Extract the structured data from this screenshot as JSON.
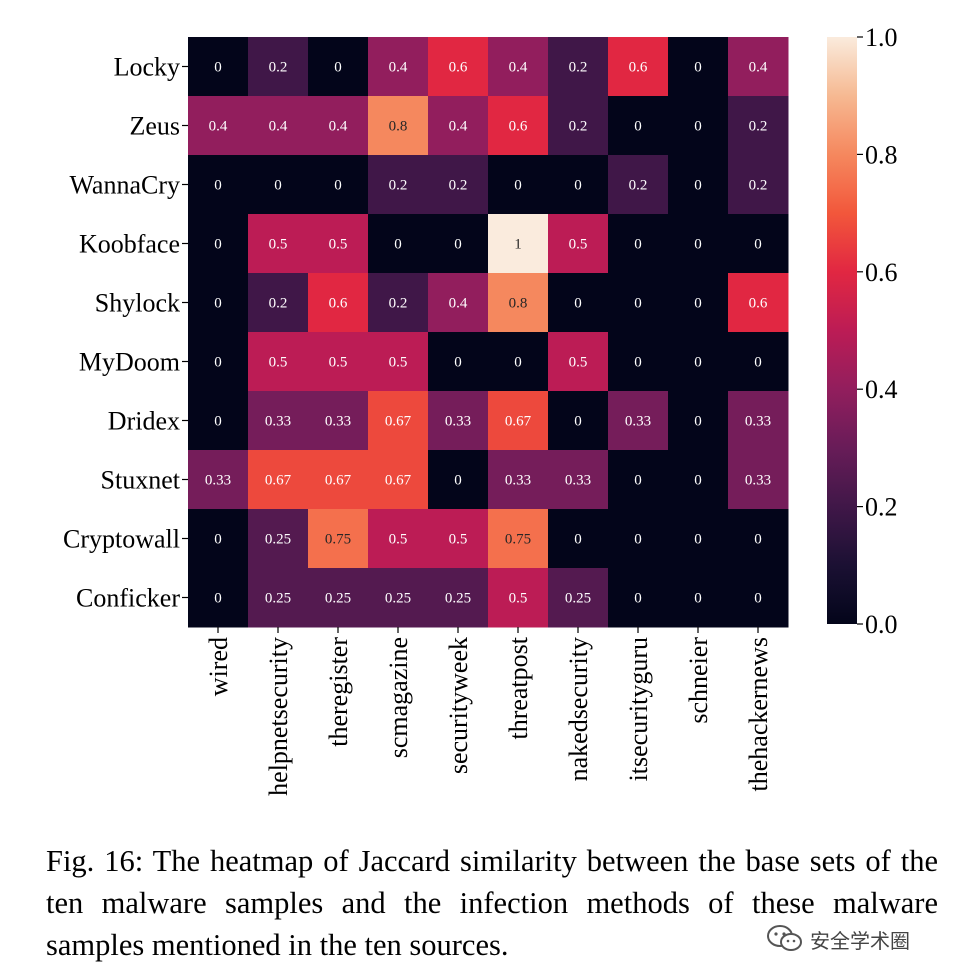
{
  "caption": "Fig. 16: The heatmap of Jaccard similarity between the base sets of the ten malware samples and the infection methods of these malware samples mentioned in the ten sources.",
  "watermark": {
    "text": "安全学术圈",
    "icon": "wechat-icon"
  },
  "chart_data": {
    "type": "heatmap",
    "rows": [
      "Locky",
      "Zeus",
      "WannaCry",
      "Koobface",
      "Shylock",
      "MyDoom",
      "Dridex",
      "Stuxnet",
      "Cryptowall",
      "Conficker"
    ],
    "columns": [
      "wired",
      "helpnetsecurity",
      "theregister",
      "scmagazine",
      "securityweek",
      "threatpost",
      "nakedsecurity",
      "itsecurityguru",
      "schneier",
      "thehackernews"
    ],
    "values": [
      [
        0,
        0.2,
        0,
        0.4,
        0.6,
        0.4,
        0.2,
        0.6,
        0,
        0.4
      ],
      [
        0.4,
        0.4,
        0.4,
        0.8,
        0.4,
        0.6,
        0.2,
        0,
        0,
        0.2
      ],
      [
        0,
        0,
        0,
        0.2,
        0.2,
        0,
        0,
        0.2,
        0,
        0.2
      ],
      [
        0,
        0.5,
        0.5,
        0,
        0,
        1,
        0.5,
        0,
        0,
        0
      ],
      [
        0,
        0.2,
        0.6,
        0.2,
        0.4,
        0.8,
        0,
        0,
        0,
        0.6
      ],
      [
        0,
        0.5,
        0.5,
        0.5,
        0,
        0,
        0.5,
        0,
        0,
        0
      ],
      [
        0,
        0.33,
        0.33,
        0.67,
        0.33,
        0.67,
        0,
        0.33,
        0,
        0.33
      ],
      [
        0.33,
        0.67,
        0.67,
        0.67,
        0,
        0.33,
        0.33,
        0,
        0,
        0.33
      ],
      [
        0,
        0.25,
        0.75,
        0.5,
        0.5,
        0.75,
        0,
        0,
        0,
        0
      ],
      [
        0,
        0.25,
        0.25,
        0.25,
        0.25,
        0.5,
        0.25,
        0,
        0,
        0
      ]
    ],
    "colormap": "rocket",
    "colorbar": {
      "range": [
        0.0,
        1.0
      ],
      "ticks": [
        "0.0",
        "0.2",
        "0.4",
        "0.6",
        "0.8",
        "1.0"
      ],
      "position": "right"
    },
    "annotations": true
  }
}
